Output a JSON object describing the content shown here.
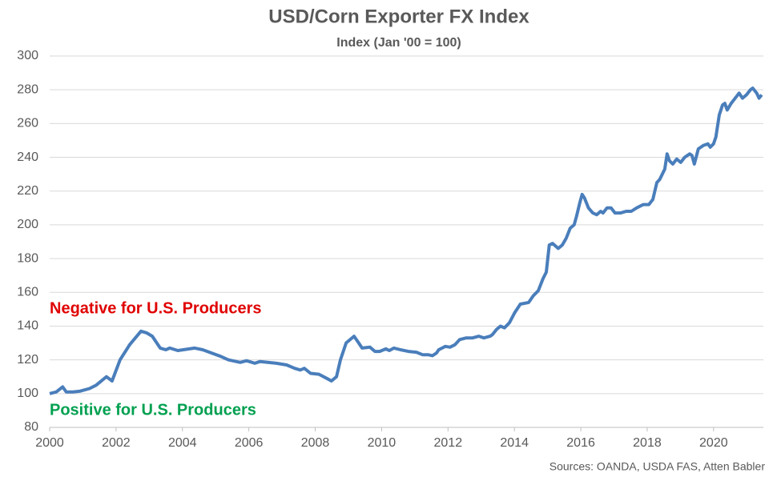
{
  "chart_data": {
    "type": "line",
    "title": "USD/Corn Exporter FX Index",
    "subtitle": "Index (Jan '00 = 100)",
    "annotations": [
      {
        "text": "Negative for U.S. Producers",
        "color": "#e00000"
      },
      {
        "text": "Positive for U.S. Producers",
        "color": "#00a050"
      }
    ],
    "source": "Sources: OANDA, USDA FAS, Atten Babler",
    "x": [
      2000.0,
      2000.2,
      2000.39,
      2000.5,
      2000.7,
      2000.92,
      2001.2,
      2001.4,
      2001.71,
      2001.88,
      2002.12,
      2002.41,
      2002.75,
      2002.92,
      2003.09,
      2003.33,
      2003.5,
      2003.62,
      2003.86,
      2004.37,
      2004.61,
      2005.02,
      2005.16,
      2005.38,
      2005.74,
      2005.93,
      2006.18,
      2006.34,
      2006.83,
      2007.14,
      2007.38,
      2007.55,
      2007.67,
      2007.86,
      2008.11,
      2008.35,
      2008.49,
      2008.64,
      2008.76,
      2008.93,
      2009.17,
      2009.31,
      2009.41,
      2009.65,
      2009.8,
      2009.94,
      2010.13,
      2010.23,
      2010.37,
      2010.57,
      2010.81,
      2011.05,
      2011.24,
      2011.41,
      2011.53,
      2011.65,
      2011.72,
      2011.92,
      2012.06,
      2012.21,
      2012.35,
      2012.55,
      2012.74,
      2012.93,
      2013.08,
      2013.27,
      2013.34,
      2013.46,
      2013.58,
      2013.7,
      2013.85,
      2014.01,
      2014.18,
      2014.43,
      2014.57,
      2014.72,
      2014.86,
      2014.96,
      2015.05,
      2015.15,
      2015.32,
      2015.44,
      2015.56,
      2015.68,
      2015.8,
      2015.87,
      2015.97,
      2016.04,
      2016.11,
      2016.23,
      2016.36,
      2016.48,
      2016.6,
      2016.67,
      2016.79,
      2016.91,
      2017.03,
      2017.2,
      2017.37,
      2017.52,
      2017.68,
      2017.88,
      2018.05,
      2018.17,
      2018.29,
      2018.38,
      2018.53,
      2018.6,
      2018.67,
      2018.77,
      2018.89,
      2019.01,
      2019.13,
      2019.28,
      2019.35,
      2019.42,
      2019.54,
      2019.69,
      2019.83,
      2019.9,
      2020.0,
      2020.07,
      2020.17,
      2020.27,
      2020.34,
      2020.41,
      2020.53,
      2020.65,
      2020.77,
      2020.87,
      2020.99,
      2021.11,
      2021.18,
      2021.3,
      2021.37,
      2021.45
    ],
    "series": [
      {
        "name": "USD/Corn Exporter FX Index",
        "color": "#4a7ebb",
        "values": [
          100,
          101,
          104,
          101,
          101,
          101.5,
          103,
          105,
          110,
          107.5,
          120,
          129,
          137,
          136,
          134,
          127,
          126,
          127,
          125.5,
          127,
          126,
          123,
          122,
          120,
          118.5,
          119.5,
          118,
          119,
          118,
          117,
          115,
          114,
          115,
          112,
          111.5,
          109,
          107.5,
          110,
          120,
          130,
          134,
          130,
          127,
          127.5,
          125,
          125,
          126.5,
          125.5,
          127,
          126,
          125,
          124.5,
          123,
          123,
          122.5,
          124,
          126,
          128,
          127.5,
          129,
          132,
          133,
          133,
          134,
          133,
          134,
          135,
          138,
          140,
          139,
          142,
          148,
          153,
          154,
          158,
          161,
          168,
          172,
          188,
          189,
          186,
          188,
          192,
          198,
          200,
          205,
          213,
          218,
          216,
          210,
          207,
          206,
          208,
          207,
          210,
          210,
          207,
          207,
          208,
          208,
          210,
          212,
          212,
          215,
          225,
          227,
          233,
          242,
          238,
          236,
          239,
          237,
          240,
          242,
          241,
          236,
          245,
          247,
          248,
          246,
          248,
          252,
          265,
          271,
          272,
          268,
          272,
          275,
          278,
          275,
          277,
          280,
          281,
          278,
          275,
          277
        ]
      }
    ],
    "xlim": [
      2000,
      2021.5
    ],
    "xticks": [
      2000,
      2002,
      2004,
      2006,
      2008,
      2010,
      2012,
      2014,
      2016,
      2018,
      2020
    ],
    "ylim": [
      80,
      300
    ],
    "yticks": [
      80,
      100,
      120,
      140,
      160,
      180,
      200,
      220,
      240,
      260,
      280,
      300
    ],
    "grid": true
  }
}
